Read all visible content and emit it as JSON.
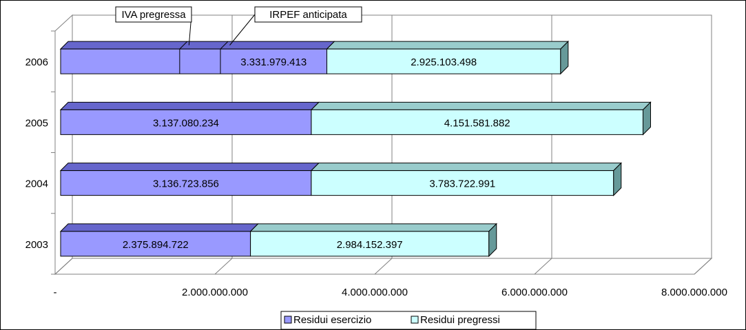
{
  "chart_data": {
    "type": "bar3d_stacked_horizontal",
    "categories": [
      "2003",
      "2004",
      "2005",
      "2006"
    ],
    "series": [
      {
        "name": "Residui esercizio",
        "color": "#9999ff",
        "top_color": "#6666cc",
        "side_color": "#333399",
        "values": [
          2375894722,
          3136723856,
          3137080234,
          3331979413
        ],
        "value_labels": [
          "2.375.894.722",
          "3.136.723.856",
          "3.137.080.234",
          "3.331.979.413"
        ]
      },
      {
        "name": "Residui pregressi",
        "color": "#ccffff",
        "top_color": "#99cccc",
        "side_color": "#669999",
        "values": [
          2984152397,
          3783722991,
          4151581882,
          2925103498
        ],
        "value_labels": [
          "2.984.152.397",
          "3.783.722.991",
          "4.151.581.882",
          "2.925.103.498"
        ]
      }
    ],
    "annotations": [
      {
        "text": "IVA pregressa",
        "category": "2006",
        "x": 1490000000
      },
      {
        "text": "IRPEF anticipata",
        "category": "2006",
        "x": 2000000000
      }
    ],
    "xlim": [
      0,
      8000000000
    ],
    "xticks": [
      {
        "value": 0,
        "label": "-"
      },
      {
        "value": 2000000000,
        "label": "2.000.000.000"
      },
      {
        "value": 4000000000,
        "label": "4.000.000.000"
      },
      {
        "value": 6000000000,
        "label": "6.000.000.000"
      },
      {
        "value": 8000000000,
        "label": "8.000.000.000"
      }
    ],
    "grid": true,
    "legend": "bottom"
  }
}
